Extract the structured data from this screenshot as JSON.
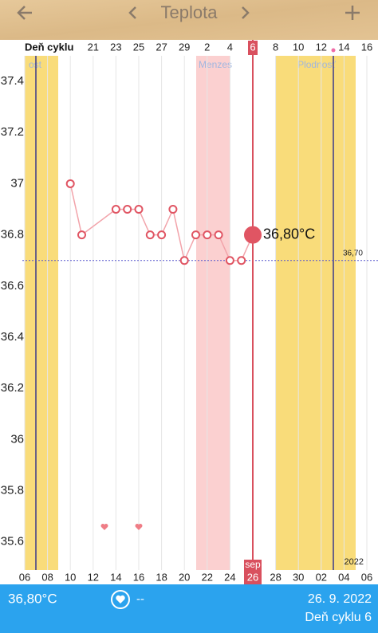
{
  "header": {
    "title": "Teplota"
  },
  "chart_data": {
    "type": "line",
    "categories": [
      "06",
      null,
      "08",
      null,
      "10",
      null,
      "12",
      null,
      "14",
      null,
      "16",
      null,
      "18",
      null,
      "20",
      null,
      "22",
      null,
      "24",
      null,
      "26",
      null,
      "28",
      null,
      "30",
      null,
      "02",
      null,
      "04",
      null,
      "06"
    ],
    "month_label": "sep",
    "series": [
      {
        "color": "#f2a3aa",
        "values": [
          null,
          null,
          null,
          null,
          37,
          36.8,
          null,
          null,
          36.9,
          36.9,
          36.9,
          36.8,
          36.8,
          36.9,
          36.7,
          36.8,
          36.8,
          36.8,
          36.7,
          36.7,
          36.8,
          null,
          null,
          null,
          null,
          null,
          null,
          null,
          null,
          null,
          null
        ]
      }
    ],
    "ylim": [
      35.49,
      37.5
    ],
    "yticks": [
      35.6,
      35.8,
      36,
      36.2,
      36.4,
      36.6,
      36.8,
      37,
      37.2,
      37.4
    ],
    "grid": true,
    "cycle_label": "Deň cyklu",
    "cycle_days": [
      21,
      23,
      25,
      27,
      29,
      2,
      4,
      6,
      8,
      10,
      12,
      14,
      16
    ],
    "phases": [
      {
        "label": "ost"
      },
      {
        "label": "Menzes"
      },
      {
        "label": "Plodnosť"
      }
    ],
    "coverline": {
      "value": 36.7,
      "label": "36,70"
    },
    "annotations": [
      {
        "text": "36,80°C"
      }
    ],
    "year": "2022"
  },
  "footer": {
    "temperature": "36,80°C",
    "note": "--",
    "date": "26. 9. 2022",
    "cycle_day": "Deň cyklu 6"
  }
}
